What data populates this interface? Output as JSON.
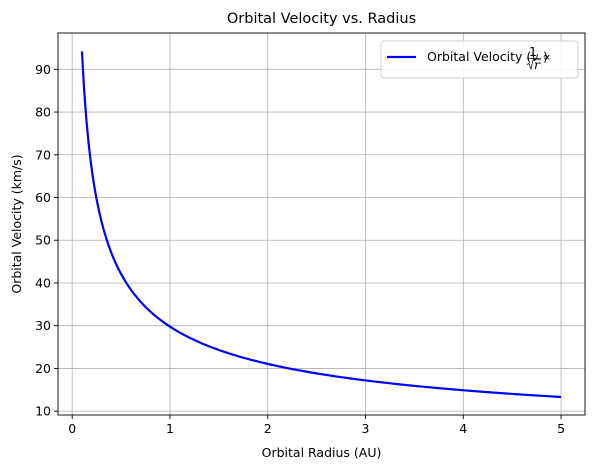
{
  "chart_data": {
    "type": "line",
    "title": "Orbital Velocity vs. Radius",
    "xlabel": "Orbital Radius (AU)",
    "ylabel": "Orbital Velocity (km/s)",
    "xlim": [
      -0.145,
      5.245
    ],
    "ylim": [
      9.1,
      98.5
    ],
    "xticks": [
      0,
      1,
      2,
      3,
      4,
      5
    ],
    "yticks": [
      10,
      20,
      30,
      40,
      50,
      60,
      70,
      80,
      90
    ],
    "grid": true,
    "legend_position": "top-right",
    "series": [
      {
        "name": "Orbital Velocity",
        "name_math": {
          "prefix": "v ∝ ",
          "numerator": "1",
          "denominator": "r"
        },
        "color": "#0000ff",
        "x_range": [
          0.1,
          5
        ],
        "coefficient": 29.78,
        "x": [
          0.1,
          0.15,
          0.2,
          0.3,
          0.5,
          0.75,
          1,
          1.5,
          2,
          3,
          4,
          5
        ],
        "y": [
          94.2,
          76.9,
          66.6,
          54.4,
          42.1,
          34.4,
          29.8,
          24.3,
          21.1,
          17.2,
          14.9,
          13.3
        ]
      }
    ]
  }
}
